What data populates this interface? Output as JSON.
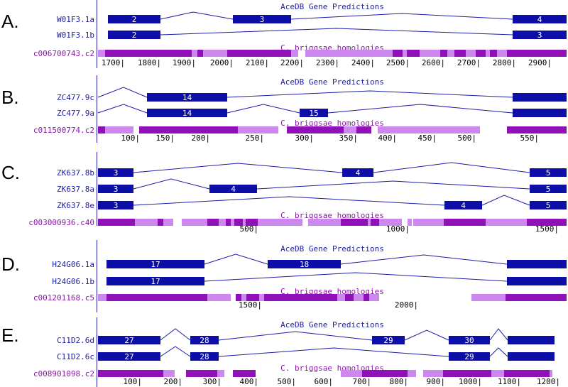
{
  "colors": {
    "exon": "#0d0da8",
    "intron": "#1c1ca8",
    "axis": "#1c1ca8",
    "hom_dark": "#9010b8",
    "hom_light": "#cc88ee",
    "tick": "#000000"
  },
  "panels": [
    {
      "letter": "A.",
      "title": "AceDB Gene Predictions",
      "homology_title": "C. briggsae homologies",
      "homology_label": "c006700743.c2",
      "ticks": [
        "1700|",
        "1800|",
        "1900|",
        "2000|",
        "2100|",
        "2200|",
        "2300|",
        "2400|",
        "2500|",
        "2600|",
        "2700|",
        "2800|",
        "2900|"
      ],
      "genes": [
        {
          "name": "W01F3.1a",
          "exon_labels": [
            "2",
            "3",
            "4"
          ]
        },
        {
          "name": "W01F3.1b",
          "exon_labels": [
            "2",
            "3"
          ]
        }
      ]
    },
    {
      "letter": "B.",
      "title": "AceDB Gene Predictions",
      "homology_title": "C. briggsae homologies",
      "homology_label": "c011500774.c2",
      "ticks": [
        "100|",
        "150|",
        "200|",
        "250|",
        "300|",
        "350|",
        "400|",
        "450|",
        "500|",
        "550|"
      ],
      "genes": [
        {
          "name": "ZC477.9c",
          "exon_labels": [
            "14"
          ]
        },
        {
          "name": "ZC477.9a",
          "exon_labels": [
            "14",
            "15"
          ]
        }
      ]
    },
    {
      "letter": "C.",
      "title": "",
      "homology_title": "C. briggsae homologies",
      "homology_label": "c003000936.c40",
      "ticks": [
        "500|",
        "1000|",
        "1500|"
      ],
      "genes": [
        {
          "name": "ZK637.8b",
          "exon_labels": [
            "3",
            "4",
            "5"
          ]
        },
        {
          "name": "ZK637.8a",
          "exon_labels": [
            "3",
            "4",
            "5"
          ]
        },
        {
          "name": "ZK637.8e",
          "exon_labels": [
            "3",
            "4",
            "5"
          ]
        }
      ]
    },
    {
      "letter": "D.",
      "title": "AceDB Gene Predictions",
      "homology_title": "C. briggsae homologies",
      "homology_label": "c001201168.c5",
      "ticks": [
        "1500|",
        "2000|"
      ],
      "genes": [
        {
          "name": "H24G06.1a",
          "exon_labels": [
            "17",
            "18"
          ]
        },
        {
          "name": "H24G06.1b",
          "exon_labels": [
            "17"
          ]
        }
      ]
    },
    {
      "letter": "E.",
      "title": "AceDB Gene Predictions",
      "homology_title": "C. briggsae homologies",
      "homology_label": "c008901098.c2",
      "ticks": [
        "100|",
        "200|",
        "300|",
        "400|",
        "500|",
        "600|",
        "700|",
        "800|",
        "900|",
        "1000|",
        "1100|",
        "1200|"
      ],
      "genes": [
        {
          "name": "C11D2.6d",
          "exon_labels": [
            "27",
            "28",
            "29",
            "30"
          ]
        },
        {
          "name": "C11D2.6c",
          "exon_labels": [
            "27",
            "28",
            "29"
          ]
        }
      ]
    }
  ]
}
